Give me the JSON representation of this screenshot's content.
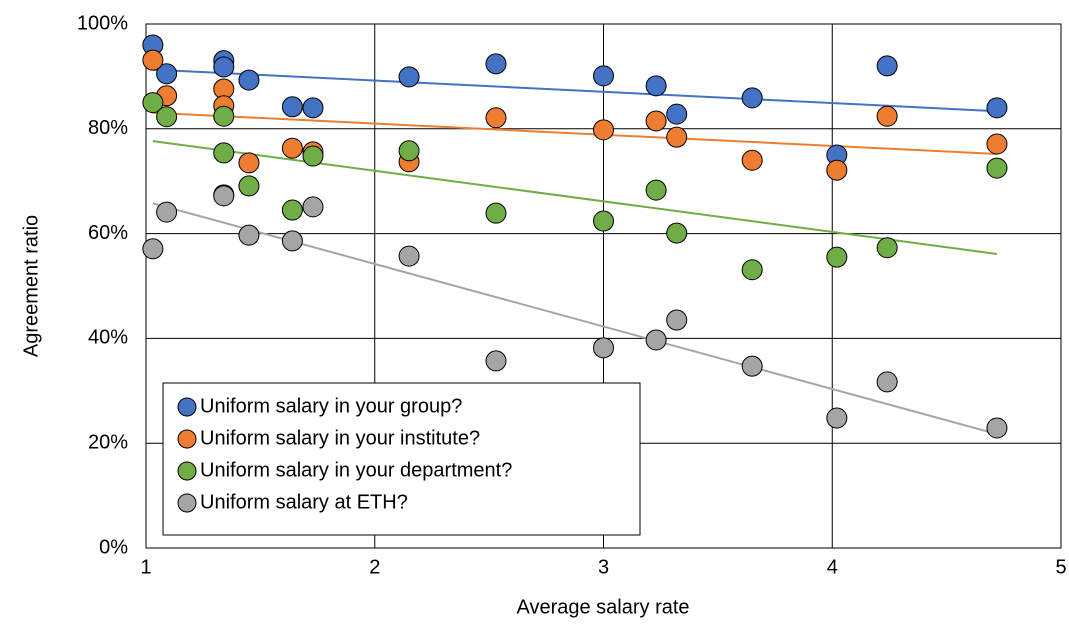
{
  "chart_data": {
    "type": "scatter",
    "xlabel": "Average salary rate",
    "ylabel": "Agreement ratio",
    "xlim": [
      1,
      5
    ],
    "xticks": [
      1,
      2,
      3,
      4,
      5
    ],
    "ylim": [
      0,
      100
    ],
    "yticks": [
      {
        "value": 0,
        "label": "0%"
      },
      {
        "value": 20,
        "label": "20%"
      },
      {
        "value": 40,
        "label": "40%"
      },
      {
        "value": 60,
        "label": "60%"
      },
      {
        "value": 80,
        "label": "80%"
      },
      {
        "value": 100,
        "label": "100%"
      }
    ],
    "grid": true,
    "trendline": "linear",
    "legend": "lower left",
    "x": [
      1.03,
      1.09,
      1.34,
      1.34,
      1.45,
      1.64,
      1.73,
      2.15,
      2.53,
      3.0,
      3.23,
      3.32,
      3.65,
      4.02,
      4.24,
      4.72
    ],
    "series": [
      {
        "name": "Uniform salary in your group?",
        "color": "#4472c4",
        "values": [
          96.0,
          90.5,
          93.0,
          91.8,
          89.3,
          84.2,
          84.0,
          89.9,
          92.4,
          90.1,
          88.2,
          82.8,
          85.9,
          75.0,
          92.0,
          84.0
        ]
      },
      {
        "name": "Uniform salary in your institute?",
        "color": "#ed7d31",
        "values": [
          93.1,
          86.3,
          87.6,
          84.4,
          73.5,
          76.3,
          75.6,
          73.7,
          82.1,
          79.8,
          81.5,
          78.4,
          74.0,
          72.1,
          82.4,
          77.1
        ]
      },
      {
        "name": "Uniform salary in your department?",
        "color": "#70ad47",
        "values": [
          85.0,
          82.3,
          82.4,
          75.4,
          69.1,
          64.5,
          74.8,
          75.8,
          63.9,
          62.4,
          68.3,
          60.1,
          53.1,
          55.5,
          57.3,
          72.5
        ]
      },
      {
        "name": "Uniform salary at ETH?",
        "color": "#a5a5a5",
        "values": [
          57.1,
          64.1,
          67.4,
          67.2,
          59.7,
          58.6,
          65.1,
          55.7,
          35.7,
          38.2,
          39.7,
          43.5,
          34.7,
          24.8,
          31.7,
          22.9
        ]
      }
    ]
  }
}
